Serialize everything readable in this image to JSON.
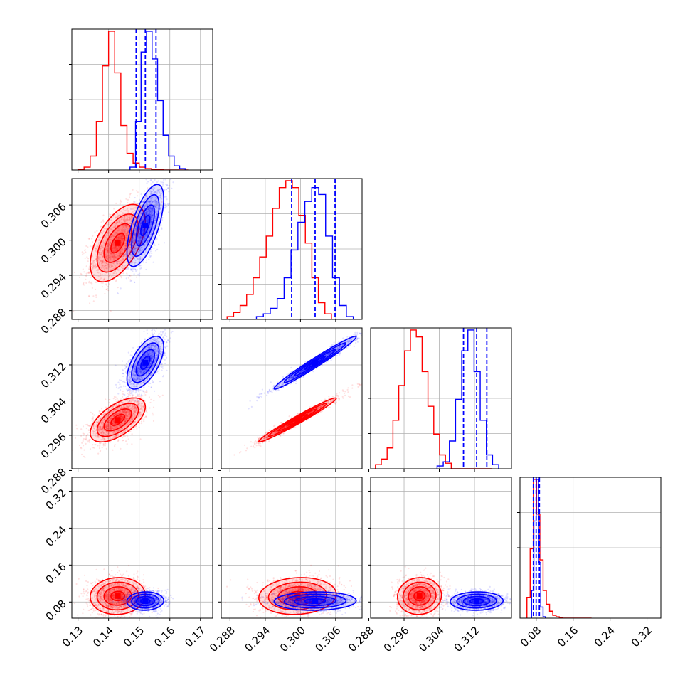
{
  "chart_data": {
    "type": "corner",
    "colors": {
      "series_a": "#ff0000",
      "series_b": "#0000ff",
      "grid": "#b0b0b0"
    },
    "grid": true,
    "parameters": [
      {
        "range": [
          0.128,
          0.174
        ],
        "ticks": [
          0.13,
          0.14,
          0.15,
          0.16,
          0.17
        ],
        "tick_labels": [
          "0.13",
          "0.14",
          "0.15",
          "0.16",
          "0.17"
        ]
      },
      {
        "range": [
          0.2865,
          0.3105
        ],
        "ticks": [
          0.288,
          0.294,
          0.3,
          0.306
        ],
        "tick_labels": [
          "0.288",
          "0.294",
          "0.300",
          "0.306"
        ]
      },
      {
        "range": [
          0.2884,
          0.3204
        ],
        "ticks": [
          0.288,
          0.296,
          0.304,
          0.312
        ],
        "tick_labels": [
          "0.288",
          "0.296",
          "0.304",
          "0.312"
        ]
      },
      {
        "range": [
          0.045,
          0.35
        ],
        "ticks": [
          0.08,
          0.16,
          0.24,
          0.32
        ],
        "tick_labels": [
          "0.08",
          "0.16",
          "0.24",
          "0.32"
        ]
      }
    ],
    "series": [
      {
        "color": "#ff0000",
        "mean": [
          0.143,
          0.2995,
          0.2995,
          0.093
        ],
        "sd": [
          0.0045,
          0.0033,
          0.0025,
          0.02
        ],
        "corr": [
          [
            1.0,
            0.55,
            0.6,
            0.05
          ],
          [
            0.55,
            1.0,
            0.98,
            0.1
          ],
          [
            0.6,
            0.98,
            1.0,
            0.05
          ],
          [
            0.05,
            0.1,
            0.05,
            1.0
          ]
        ],
        "hist": [
          [
            0.005,
            0.02,
            0.1,
            0.35,
            0.75,
            1.0,
            0.7,
            0.32,
            0.12,
            0.05,
            0.02,
            0.01,
            0.005,
            0.002,
            0.0,
            0.0,
            0.0,
            0.0
          ],
          [
            0.02,
            0.05,
            0.1,
            0.18,
            0.3,
            0.45,
            0.6,
            0.8,
            0.95,
            1.0,
            0.95,
            0.75,
            0.55,
            0.3,
            0.12,
            0.04,
            0.0,
            0.0
          ],
          [
            0.03,
            0.07,
            0.15,
            0.35,
            0.6,
            0.85,
            1.0,
            0.95,
            0.7,
            0.45,
            0.25,
            0.1,
            0.04,
            0.0,
            0.0,
            0.0,
            0.0,
            0.0,
            0.0,
            0.0
          ],
          [
            0.15,
            0.5,
            1.0,
            0.75,
            0.42,
            0.2,
            0.1,
            0.05,
            0.02,
            0.01,
            0.005,
            0.0,
            0.0,
            0.0,
            0.0,
            0.0,
            0.0,
            0.0,
            0.0,
            0.0
          ]
        ],
        "hist_start": [
          0.13,
          0.2875,
          0.2895,
          0.06
        ],
        "hist_end": [
          0.166,
          0.3075,
          0.316,
          0.2
        ]
      },
      {
        "color": "#0000ff",
        "mean": [
          0.152,
          0.3025,
          0.3125,
          0.082
        ],
        "sd": [
          0.003,
          0.0035,
          0.003,
          0.01
        ],
        "corr": [
          [
            1.0,
            0.65,
            0.6,
            0.05
          ],
          [
            0.65,
            1.0,
            0.98,
            0.05
          ],
          [
            0.6,
            0.98,
            1.0,
            0.05
          ],
          [
            0.05,
            0.05,
            0.05,
            1.0
          ]
        ],
        "hist": [
          [
            0.02,
            0.35,
            0.85,
            1.0,
            0.8,
            0.5,
            0.25,
            0.1,
            0.03,
            0.01
          ],
          [
            0.02,
            0.04,
            0.08,
            0.15,
            0.3,
            0.5,
            0.7,
            0.85,
            0.95,
            0.9,
            0.6,
            0.3,
            0.1,
            0.02
          ],
          [
            0.02,
            0.05,
            0.2,
            0.5,
            0.85,
            1.0,
            0.7,
            0.35,
            0.1,
            0.03
          ],
          [
            0.2,
            0.7,
            1.0,
            0.4,
            0.08,
            0.01
          ]
        ],
        "hist_start": [
          0.147,
          0.2925,
          0.3035,
          0.07
        ],
        "hist_end": [
          0.165,
          0.309,
          0.3175,
          0.1
        ],
        "quantiles": [
          [
            0.149,
            0.152,
            0.1555
          ],
          [
            0.2985,
            0.3025,
            0.3059
          ],
          [
            0.3095,
            0.3125,
            0.3148
          ],
          [
            0.074,
            0.08,
            0.087
          ]
        ]
      }
    ]
  }
}
